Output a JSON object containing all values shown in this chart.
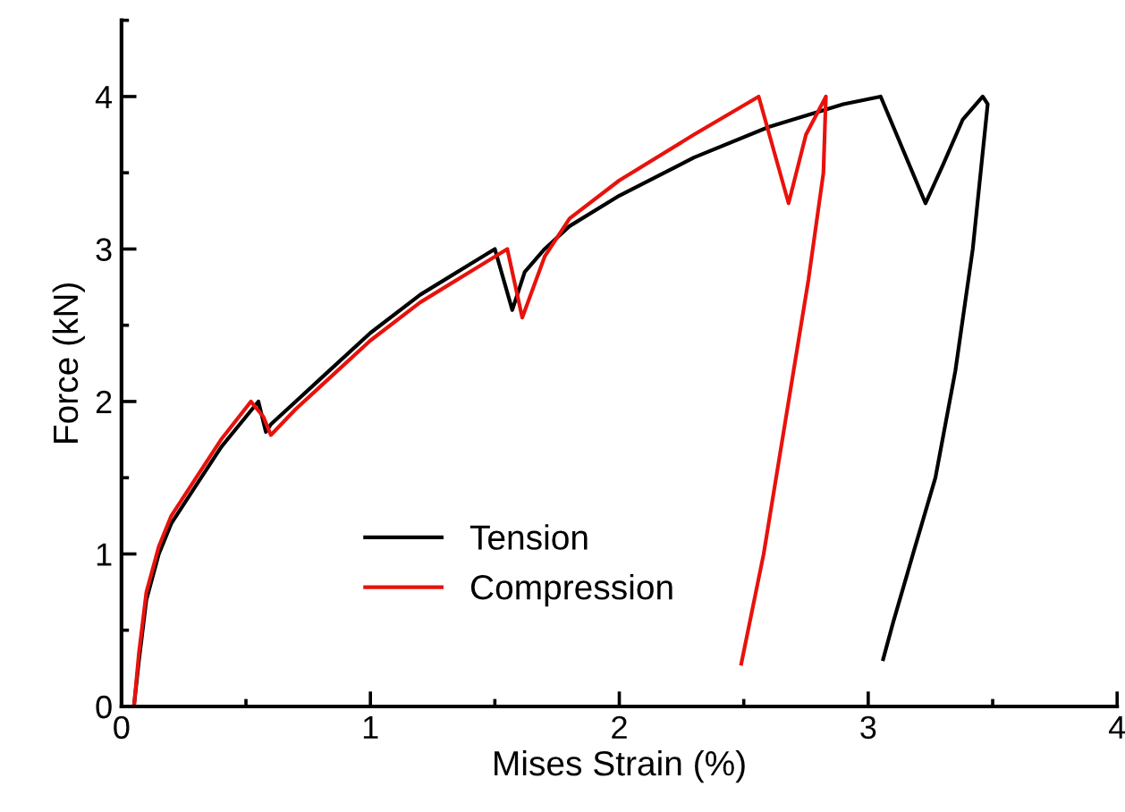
{
  "chart_data": {
    "type": "line",
    "xlabel": "Mises Strain (%)",
    "ylabel": "Force (kN)",
    "xlim": [
      0,
      4
    ],
    "ylim": [
      0,
      4.5
    ],
    "xticks": [
      0,
      1,
      2,
      3,
      4
    ],
    "yticks": [
      0,
      1,
      2,
      3,
      4
    ],
    "grid": false,
    "legend": "bottom",
    "line_style": "solid",
    "marker": "none",
    "series": [
      {
        "name": "Tension",
        "color": "#000000",
        "x": [
          0.05,
          0.07,
          0.1,
          0.15,
          0.2,
          0.3,
          0.4,
          0.5,
          0.55,
          0.58,
          0.6,
          0.7,
          0.8,
          1.0,
          1.2,
          1.4,
          1.5,
          1.57,
          1.62,
          1.7,
          1.8,
          2.0,
          2.3,
          2.6,
          2.9,
          3.05,
          3.23,
          3.3,
          3.38,
          3.46,
          3.48,
          3.42,
          3.35,
          3.27,
          3.18,
          3.1,
          3.06
        ],
        "values": [
          0,
          0.3,
          0.7,
          1.0,
          1.2,
          1.45,
          1.7,
          1.9,
          2.0,
          1.8,
          1.85,
          2.0,
          2.15,
          2.45,
          2.7,
          2.9,
          3.0,
          2.6,
          2.85,
          3.0,
          3.15,
          3.35,
          3.6,
          3.8,
          3.95,
          4.0,
          3.3,
          3.55,
          3.85,
          4.0,
          3.95,
          3.0,
          2.2,
          1.5,
          1.0,
          0.55,
          0.31
        ]
      },
      {
        "name": "Compression",
        "color": "#e8120c",
        "x": [
          0.05,
          0.07,
          0.1,
          0.15,
          0.2,
          0.3,
          0.4,
          0.52,
          0.57,
          0.6,
          0.7,
          0.8,
          1.0,
          1.2,
          1.4,
          1.55,
          1.61,
          1.7,
          1.8,
          2.0,
          2.3,
          2.56,
          2.68,
          2.75,
          2.83,
          2.82,
          2.76,
          2.7,
          2.64,
          2.58,
          2.53,
          2.49
        ],
        "values": [
          0,
          0.35,
          0.75,
          1.05,
          1.25,
          1.5,
          1.75,
          2.0,
          1.9,
          1.78,
          1.95,
          2.1,
          2.4,
          2.65,
          2.85,
          3.0,
          2.55,
          2.95,
          3.2,
          3.45,
          3.75,
          4.0,
          3.3,
          3.75,
          4.0,
          3.5,
          2.8,
          2.2,
          1.6,
          1.0,
          0.6,
          0.28
        ]
      }
    ]
  }
}
